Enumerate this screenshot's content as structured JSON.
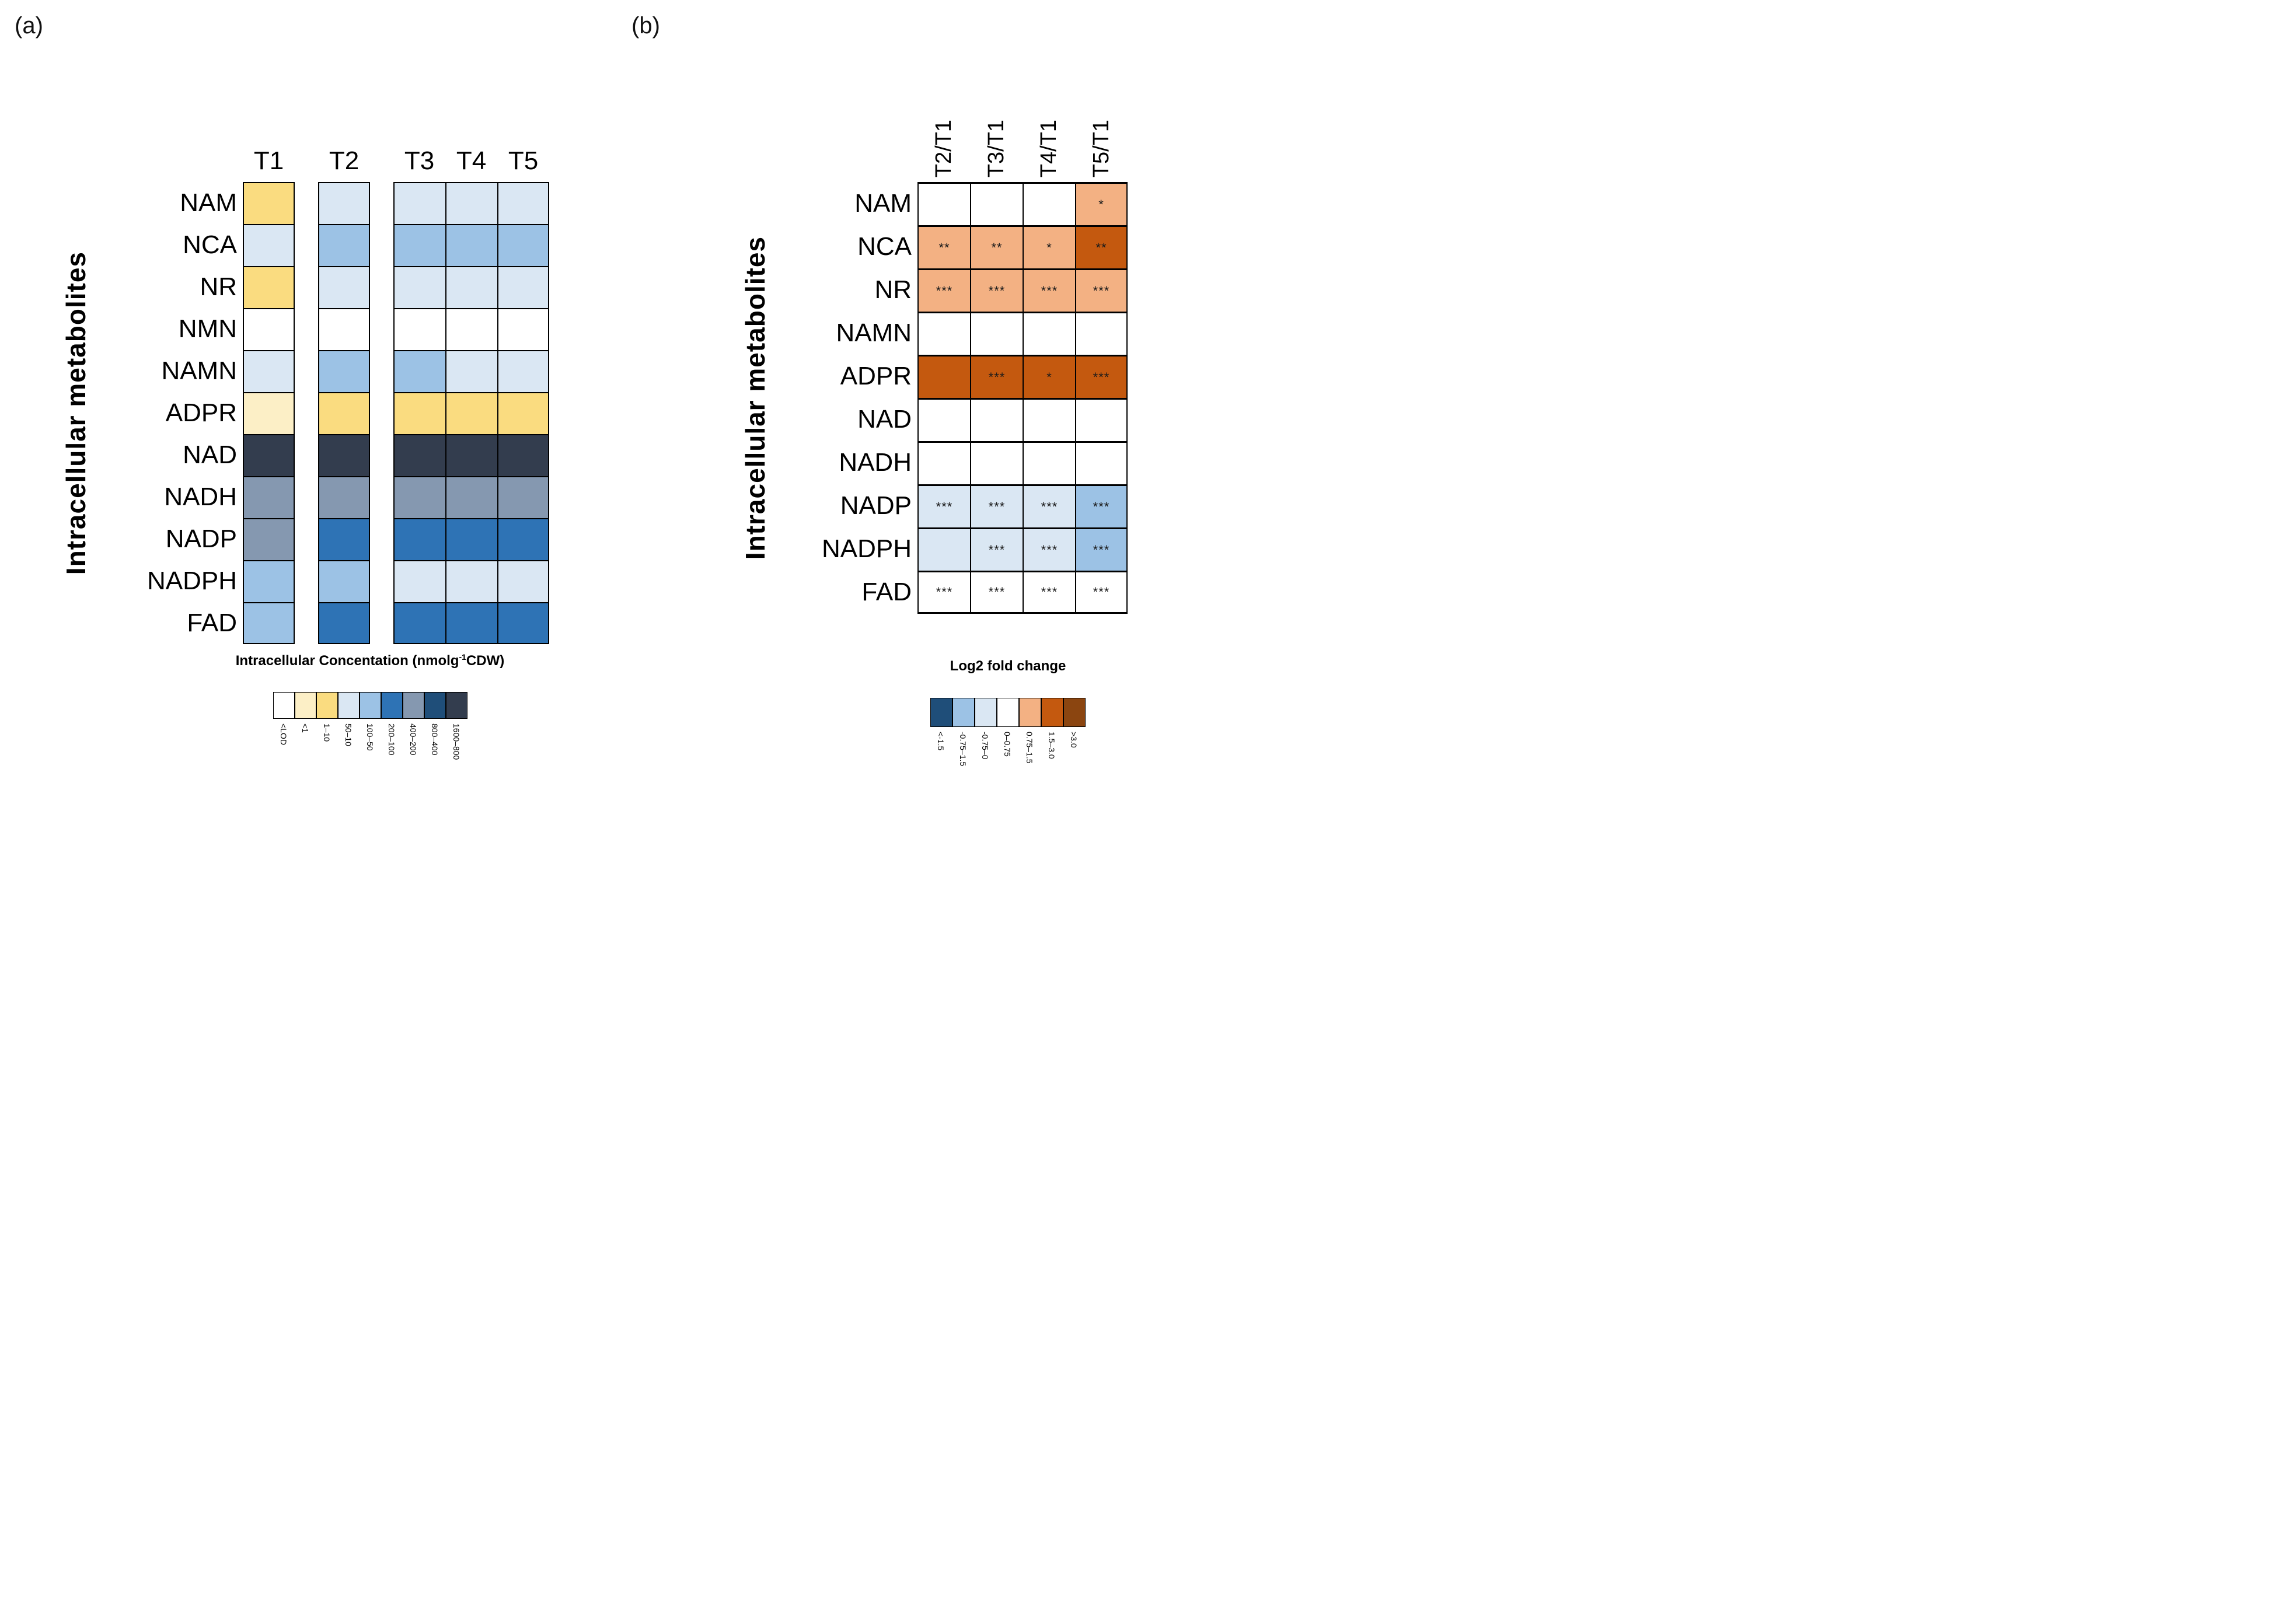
{
  "figure": {
    "panel_a_label": "(a)",
    "panel_b_label": "(b)"
  },
  "chart_data": [
    {
      "panel": "a",
      "type": "heatmap",
      "title": "Intracellular Concentation (nmolg-1CDW)",
      "title_pre": "Intracellular Concentation (nmolg",
      "title_sup": "-1",
      "title_post": "CDW)",
      "ylabel": "Intracellular metabolites",
      "columns": [
        "T1",
        "T2",
        "T3",
        "T4",
        "T5"
      ],
      "rows": [
        "NAM",
        "NCA",
        "NR",
        "NMN",
        "NAMN",
        "ADPR",
        "NAD",
        "NADH",
        "NADP",
        "NADPH",
        "FAD"
      ],
      "legend_position": "bottom",
      "classes": [
        {
          "label": "<LOD",
          "color": "#FFFFFF"
        },
        {
          "label": "<1",
          "color": "#FCEFC6"
        },
        {
          "label": "1–10",
          "color": "#FADC80"
        },
        {
          "label": "50–10",
          "color": "#DAE7F3"
        },
        {
          "label": "100–50",
          "color": "#9CC2E5"
        },
        {
          "label": "200–100",
          "color": "#2E73B5"
        },
        {
          "label": "400–200",
          "color": "#8598B0"
        },
        {
          "label": "800–400",
          "color": "#1F4E79"
        },
        {
          "label": "1600–800",
          "color": "#333D4E"
        }
      ],
      "values": [
        [
          "1–10",
          "50–10",
          "50–10",
          "50–10",
          "50–10"
        ],
        [
          "50–10",
          "100–50",
          "100–50",
          "100–50",
          "100–50"
        ],
        [
          "1–10",
          "50–10",
          "50–10",
          "50–10",
          "50–10"
        ],
        [
          "<LOD",
          "<LOD",
          "<LOD",
          "<LOD",
          "<LOD"
        ],
        [
          "50–10",
          "100–50",
          "100–50",
          "50–10",
          "50–10"
        ],
        [
          "<1",
          "1–10",
          "1–10",
          "1–10",
          "1–10"
        ],
        [
          "1600–800",
          "1600–800",
          "1600–800",
          "1600–800",
          "1600–800"
        ],
        [
          "400–200",
          "400–200",
          "400–200",
          "400–200",
          "400–200"
        ],
        [
          "400–200",
          "200–100",
          "200–100",
          "200–100",
          "200–100"
        ],
        [
          "100–50",
          "100–50",
          "50–10",
          "50–10",
          "50–10"
        ],
        [
          "100–50",
          "200–100",
          "200–100",
          "200–100",
          "200–100"
        ]
      ]
    },
    {
      "panel": "b",
      "type": "heatmap",
      "title": "Log2 fold change",
      "ylabel": "Intracellular metabolites",
      "columns": [
        "T2/T1",
        "T3/T1",
        "T4/T1",
        "T5/T1"
      ],
      "rows": [
        "NAM",
        "NCA",
        "NR",
        "NAMN",
        "ADPR",
        "NAD",
        "NADH",
        "NADP",
        "NADPH",
        "FAD"
      ],
      "legend_position": "bottom",
      "classes": [
        {
          "label": "<-1.5",
          "color": "#1F4E79"
        },
        {
          "label": "-0.75–1.5",
          "color": "#9CC2E5"
        },
        {
          "label": "-0.75–0",
          "color": "#DAE7F3"
        },
        {
          "label": "0–0.75",
          "color": "#FFFFFF"
        },
        {
          "label": "0.75–1.5",
          "color": "#F3B183"
        },
        {
          "label": "1.5–3.0",
          "color": "#C4590F"
        },
        {
          "label": ">3.0",
          "color": "#8B4510"
        }
      ],
      "values": [
        [
          "0–0.75",
          "0–0.75",
          "0–0.75",
          "0.75–1.5"
        ],
        [
          "0.75–1.5",
          "0.75–1.5",
          "0.75–1.5",
          "1.5–3.0"
        ],
        [
          "0.75–1.5",
          "0.75–1.5",
          "0.75–1.5",
          "0.75–1.5"
        ],
        [
          "0–0.75",
          "0–0.75",
          "0–0.75",
          "0–0.75"
        ],
        [
          "1.5–3.0",
          "1.5–3.0",
          "1.5–3.0",
          "1.5–3.0"
        ],
        [
          "0–0.75",
          "0–0.75",
          "0–0.75",
          "0–0.75"
        ],
        [
          "0–0.75",
          "0–0.75",
          "0–0.75",
          "0–0.75"
        ],
        [
          "-0.75–0",
          "-0.75–0",
          "-0.75–0",
          "-0.75–1.5"
        ],
        [
          "-0.75–0",
          "-0.75–0",
          "-0.75–0",
          "-0.75–1.5"
        ],
        [
          "0–0.75",
          "0–0.75",
          "0–0.75",
          "0–0.75"
        ]
      ],
      "significance": [
        [
          "",
          "",
          "",
          "*"
        ],
        [
          "**",
          "**",
          "*",
          "**"
        ],
        [
          "***",
          "***",
          "***",
          "***"
        ],
        [
          "",
          "",
          "",
          ""
        ],
        [
          "",
          "***",
          "*",
          "***"
        ],
        [
          "",
          "",
          "",
          ""
        ],
        [
          "",
          "",
          "",
          ""
        ],
        [
          "***",
          "***",
          "***",
          "***"
        ],
        [
          "",
          "***",
          "***",
          "***"
        ],
        [
          "***",
          "***",
          "***",
          "***"
        ]
      ]
    }
  ]
}
